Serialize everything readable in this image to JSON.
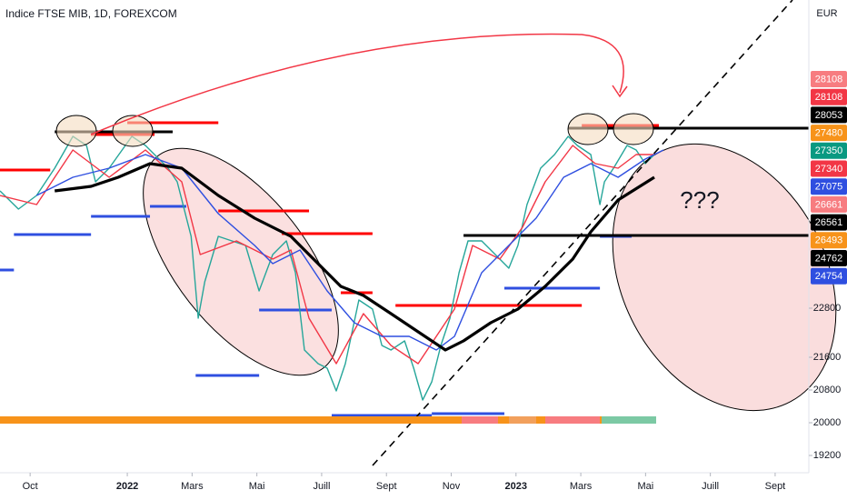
{
  "chart_data": {
    "type": "line",
    "title": "Indice FTSE MIB, 1D, FOREXCOM",
    "currency": "EUR",
    "annotation": "???",
    "xlim": [
      -0.93,
      24.04
    ],
    "xticks": [
      {
        "value": 0,
        "label": "Oct"
      },
      {
        "value": 3,
        "label": "2022"
      },
      {
        "value": 5,
        "label": "Mars"
      },
      {
        "value": 7,
        "label": "Mai"
      },
      {
        "value": 9,
        "label": "Juill"
      },
      {
        "value": 11,
        "label": "Sept"
      },
      {
        "value": 13,
        "label": "Nov"
      },
      {
        "value": 15,
        "label": "2023"
      },
      {
        "value": 17,
        "label": "Mars"
      },
      {
        "value": 19,
        "label": "Mai"
      },
      {
        "value": 21,
        "label": "Juill"
      },
      {
        "value": 23,
        "label": "Sept"
      }
    ],
    "ylim": [
      18889,
      30333
    ],
    "yticks": [
      19200,
      20000,
      20800,
      21600,
      22800
    ],
    "grid": false,
    "series": [
      {
        "color": "#26a69a",
        "width": 1.4,
        "x": [
          -0.93,
          -0.36,
          0.2,
          0.76,
          1.32,
          1.74,
          2.02,
          2.44,
          3.14,
          3.56,
          3.98,
          4.26,
          4.54,
          4.97,
          5.19,
          5.39,
          5.81,
          6.23,
          6.65,
          7.07,
          7.49,
          7.91,
          8.19,
          8.47,
          8.89,
          9.17,
          9.45,
          9.73,
          10.15,
          10.57,
          10.86,
          11.14,
          11.56,
          11.84,
          12.12,
          12.4,
          12.68,
          12.96,
          13.24,
          13.52,
          13.94,
          14.36,
          14.78,
          15.06,
          15.34,
          15.76,
          16.19,
          16.61,
          16.89,
          17.31,
          17.59,
          17.73,
          18.01,
          18.43,
          18.71,
          18.99,
          19.27
        ],
        "values": [
          25667,
          25222,
          25556,
          26222,
          27000,
          26778,
          25889,
          26222,
          27000,
          26778,
          26444,
          26222,
          25889,
          24556,
          22556,
          23444,
          24556,
          24444,
          24333,
          23222,
          24111,
          24444,
          23667,
          21778,
          21444,
          21333,
          20778,
          21444,
          23000,
          22778,
          21889,
          21778,
          22000,
          21333,
          20556,
          21000,
          21889,
          22556,
          23667,
          24444,
          24444,
          24111,
          23778,
          24333,
          25333,
          26222,
          26556,
          27000,
          26778,
          26556,
          25333,
          25889,
          26222,
          26778,
          26667,
          26333,
          26556
        ]
      },
      {
        "color": "#f23645",
        "width": 1.4,
        "x": [
          -0.93,
          0.2,
          1.32,
          2.44,
          3.56,
          4.68,
          5.25,
          6.37,
          7.49,
          8.05,
          8.61,
          9.45,
          10.29,
          11.14,
          11.98,
          13.1,
          13.66,
          14.5,
          15.2,
          15.9,
          16.75,
          17.45,
          18.15,
          18.71,
          19.27
        ],
        "values": [
          25556,
          25333,
          26667,
          26000,
          26667,
          25889,
          24111,
          24444,
          24000,
          24222,
          22556,
          21444,
          22667,
          21889,
          21444,
          22778,
          24333,
          24000,
          24778,
          25889,
          26778,
          26333,
          26222,
          26556,
          26556
        ]
      },
      {
        "color": "#2f4fe0",
        "width": 1.4,
        "x": [
          0.2,
          1.32,
          2.44,
          3.56,
          4.68,
          5.81,
          6.93,
          7.49,
          8.33,
          9.17,
          10.01,
          10.86,
          11.7,
          12.54,
          13.1,
          13.94,
          14.78,
          15.62,
          16.47,
          17.31,
          18.15,
          18.99,
          19.55
        ],
        "values": [
          25556,
          26000,
          26222,
          26556,
          26222,
          25111,
          24333,
          23889,
          24222,
          23222,
          22444,
          22111,
          22111,
          21778,
          22111,
          23667,
          24333,
          25000,
          26000,
          26333,
          26000,
          26444,
          26667
        ]
      },
      {
        "color": "#000000",
        "width": 3.2,
        "x": [
          0.76,
          1.88,
          2.72,
          3.7,
          4.68,
          5.81,
          6.93,
          8.05,
          8.89,
          9.59,
          10.29,
          11.14,
          11.98,
          12.82,
          13.38,
          14.22,
          15.06,
          15.9,
          16.75,
          17.31,
          18.15,
          19.27
        ],
        "values": [
          25667,
          25778,
          26000,
          26333,
          26222,
          25556,
          25000,
          24556,
          23889,
          23333,
          23111,
          22667,
          22222,
          21778,
          22000,
          22444,
          22778,
          23333,
          24000,
          24667,
          25444,
          26000
        ]
      }
    ],
    "levels": [
      {
        "color": "#ff0000",
        "value": 26178,
        "x": [
          -0.93,
          0.62
        ]
      },
      {
        "color": "#ff0000",
        "value": 27044,
        "x": [
          1.88,
          3.84
        ]
      },
      {
        "color": "#ff0000",
        "value": 27333,
        "x": [
          3.0,
          5.81
        ]
      },
      {
        "color": "#ff0000",
        "value": 25178,
        "x": [
          5.81,
          8.61
        ]
      },
      {
        "color": "#ff0000",
        "value": 24622,
        "x": [
          7.77,
          10.57
        ]
      },
      {
        "color": "#ff0000",
        "value": 23178,
        "x": [
          9.59,
          10.57
        ]
      },
      {
        "color": "#ff0000",
        "value": 22867,
        "x": [
          11.28,
          17.03
        ]
      },
      {
        "color": "#ff0000",
        "value": 27267,
        "x": [
          17.03,
          19.41
        ]
      },
      {
        "color": "#2f4fe0",
        "value": 24600,
        "x": [
          -0.5,
          1.88
        ]
      },
      {
        "color": "#2f4fe0",
        "value": 23733,
        "x": [
          -0.93,
          -0.5
        ]
      },
      {
        "color": "#2f4fe0",
        "value": 25044,
        "x": [
          1.88,
          3.7
        ]
      },
      {
        "color": "#2f4fe0",
        "value": 25289,
        "x": [
          3.7,
          4.82
        ]
      },
      {
        "color": "#2f4fe0",
        "value": 21156,
        "x": [
          5.11,
          7.07
        ]
      },
      {
        "color": "#2f4fe0",
        "value": 22756,
        "x": [
          7.07,
          9.31
        ]
      },
      {
        "color": "#2f4fe0",
        "value": 20178,
        "x": [
          9.31,
          12.4
        ]
      },
      {
        "color": "#2f4fe0",
        "value": 20222,
        "x": [
          12.4,
          14.64
        ]
      },
      {
        "color": "#2f4fe0",
        "value": 23289,
        "x": [
          14.64,
          17.59
        ]
      },
      {
        "color": "#2f4fe0",
        "value": 24556,
        "x": [
          17.59,
          18.57
        ]
      },
      {
        "color": "#000000",
        "value": 27111,
        "x": [
          0.76,
          4.4
        ]
      },
      {
        "color": "#000000",
        "value": 27200,
        "x": [
          16.61,
          24.04
        ]
      },
      {
        "color": "#000000",
        "value": 24578,
        "x": [
          13.38,
          24.04
        ]
      }
    ],
    "price_labels": [
      {
        "value": 28108,
        "color": "#f77c80"
      },
      {
        "value": 28108,
        "color": "#f23645"
      },
      {
        "value": 28053,
        "color": "#000000"
      },
      {
        "value": 27480,
        "color": "#f7931a"
      },
      {
        "value": 27350,
        "color": "#089981"
      },
      {
        "value": 27340,
        "color": "#f23645"
      },
      {
        "value": 27075,
        "color": "#2f4fe0"
      },
      {
        "value": 26661,
        "color": "#f77c80"
      },
      {
        "value": 26561,
        "color": "#000000"
      },
      {
        "value": 26493,
        "color": "#f7931a"
      },
      {
        "value": 24762,
        "color": "#000000"
      },
      {
        "value": 24754,
        "color": "#2f4fe0"
      }
    ]
  }
}
